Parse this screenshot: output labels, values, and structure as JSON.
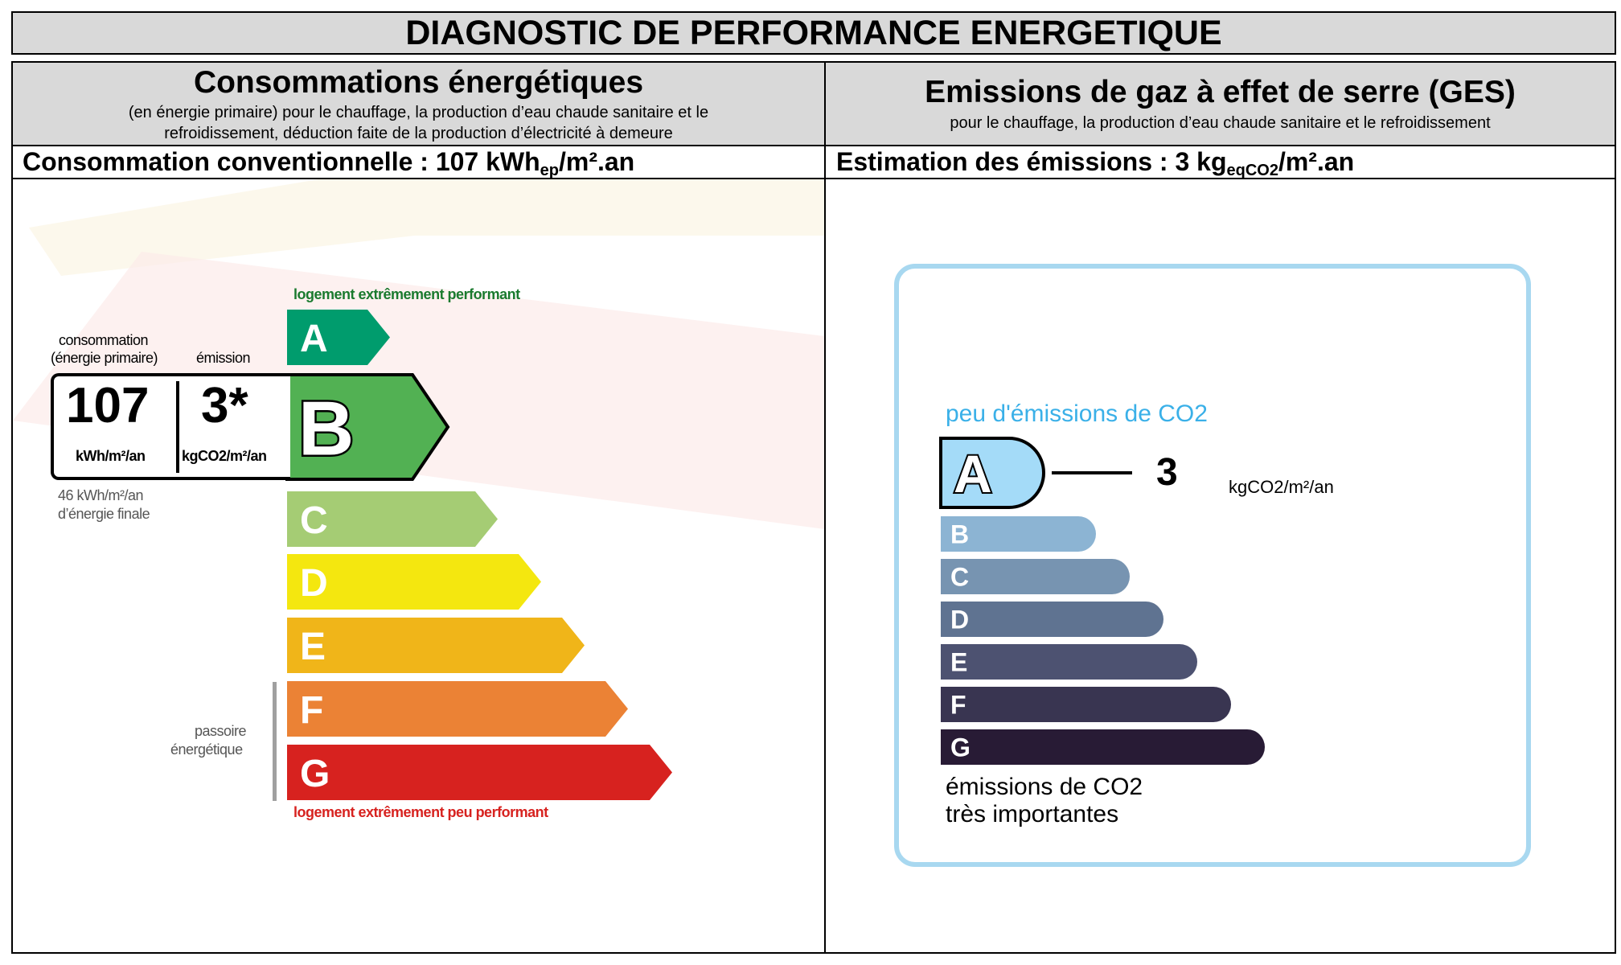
{
  "header": {
    "title": "DIAGNOSTIC DE PERFORMANCE ENERGETIQUE"
  },
  "energy": {
    "heading": "Consommations énergétiques",
    "sub1": "(en énergie primaire) pour le chauffage, la production d’eau chaude sanitaire et le",
    "sub2": "refroidissement, déduction faite de la production d’électricité à demeure",
    "summary_prefix": "Consommation conventionnelle : 107 kWh",
    "summary_sub": "ep",
    "summary_suffix": "/m².an",
    "top_label": "logement extrêmement performant",
    "bottom_label": "logement extrêmement peu performant",
    "col_label_conso_1": "consommation",
    "col_label_conso_2": "(énergie primaire)",
    "col_label_emission": "émission",
    "value_conso": "107",
    "value_emission": "3*",
    "unit_conso": "kWh/m²/an",
    "unit_emission": "kgCO2/m²/an",
    "final_energy_1": "46 kWh/m²/an",
    "final_energy_2": "d’énergie finale",
    "passoire_1": "passoire",
    "passoire_2": "énergétique",
    "current_class": "B",
    "classes": [
      {
        "letter": "A",
        "color": "#009c6d"
      },
      {
        "letter": "B",
        "color": "#52b153"
      },
      {
        "letter": "C",
        "color": "#a5cc74"
      },
      {
        "letter": "D",
        "color": "#f4e70f"
      },
      {
        "letter": "E",
        "color": "#f0b519"
      },
      {
        "letter": "F",
        "color": "#eb8235"
      },
      {
        "letter": "G",
        "color": "#d7221f"
      }
    ],
    "label_colors": {
      "top": "#1a7a2e",
      "bottom": "#d7221f"
    }
  },
  "ges": {
    "heading": "Emissions de gaz à effet de serre (GES)",
    "sub": "pour le chauffage, la production d’eau chaude sanitaire et le refroidissement",
    "summary_prefix": "Estimation des émissions : 3 kg",
    "summary_sub": "eqCO2",
    "summary_suffix": "/m².an",
    "top_label": "peu d'émissions de CO2",
    "bottom_label_1": "émissions de CO2",
    "bottom_label_2": "très importantes",
    "value": "3",
    "unit": "kgCO2/m²/an",
    "current_class": "A",
    "classes": [
      {
        "letter": "A",
        "color": "#a4dbf8"
      },
      {
        "letter": "B",
        "color": "#8cb4d3"
      },
      {
        "letter": "C",
        "color": "#7794b1"
      },
      {
        "letter": "D",
        "color": "#5f7391"
      },
      {
        "letter": "E",
        "color": "#4d5271"
      },
      {
        "letter": "F",
        "color": "#393551"
      },
      {
        "letter": "G",
        "color": "#281b35"
      }
    ],
    "top_label_color": "#3ab0e8"
  }
}
